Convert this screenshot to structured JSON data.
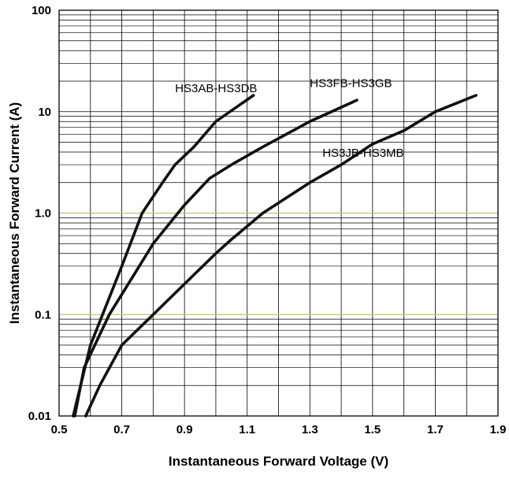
{
  "chart_data": {
    "type": "line",
    "title": "",
    "xlabel": "Instantaneous Forward Voltage (V)",
    "ylabel": "Instantaneous Forward Current (A)",
    "xlim": [
      0.5,
      1.9
    ],
    "ylim": [
      0.01,
      100
    ],
    "yscale": "log",
    "grid": true,
    "legend": "none",
    "x_ticks": [
      "0.5",
      "0.7",
      "0.9",
      "1.1",
      "1.3",
      "1.5",
      "1.7",
      "1.9"
    ],
    "y_ticks": [
      "0.01",
      "0.1",
      "1.0",
      "10",
      "100"
    ],
    "highlight_lines": [
      0.1,
      1.0
    ],
    "series": [
      {
        "name": "HS3AB-HS3DB",
        "points": [
          [
            0.545,
            0.01
          ],
          [
            0.6,
            0.05
          ],
          [
            0.7,
            0.3
          ],
          [
            0.765,
            1.0
          ],
          [
            0.83,
            2.0
          ],
          [
            0.87,
            3.0
          ],
          [
            0.93,
            4.5
          ],
          [
            1.0,
            8.0
          ],
          [
            1.12,
            14.5
          ]
        ]
      },
      {
        "name": "HS3FB-HS3GB",
        "points": [
          [
            0.55,
            0.01
          ],
          [
            0.58,
            0.03
          ],
          [
            0.66,
            0.1
          ],
          [
            0.74,
            0.25
          ],
          [
            0.8,
            0.5
          ],
          [
            0.9,
            1.2
          ],
          [
            0.98,
            2.2
          ],
          [
            1.05,
            3.0
          ],
          [
            1.15,
            4.5
          ],
          [
            1.3,
            8.0
          ],
          [
            1.45,
            13.0
          ]
        ]
      },
      {
        "name": "HS3JB-HS3MB",
        "points": [
          [
            0.585,
            0.01
          ],
          [
            0.63,
            0.02
          ],
          [
            0.7,
            0.05
          ],
          [
            0.8,
            0.1
          ],
          [
            0.9,
            0.2
          ],
          [
            1.0,
            0.4
          ],
          [
            1.05,
            0.55
          ],
          [
            1.15,
            1.0
          ],
          [
            1.3,
            2.0
          ],
          [
            1.4,
            3.0
          ],
          [
            1.5,
            4.8
          ],
          [
            1.6,
            6.5
          ],
          [
            1.7,
            10.0
          ],
          [
            1.83,
            14.5
          ]
        ]
      }
    ]
  }
}
